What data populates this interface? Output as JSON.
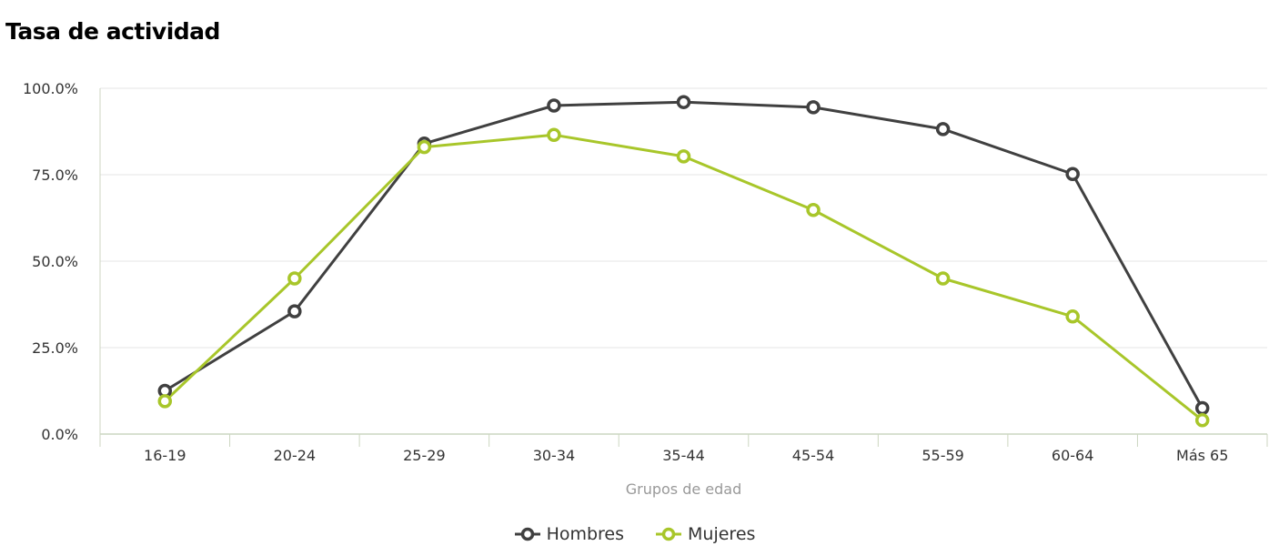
{
  "chart_data": {
    "type": "line",
    "title": "Tasa de actividad",
    "xlabel": "Grupos de edad",
    "ylabel": "",
    "categories": [
      "16-19",
      "20-24",
      "25-29",
      "30-34",
      "35-44",
      "45-54",
      "55-59",
      "60-64",
      "Más 65"
    ],
    "ylim": [
      0,
      100
    ],
    "yticks": [
      "0.0%",
      "25.0%",
      "50.0%",
      "75.0%",
      "100.0%"
    ],
    "grid": true,
    "legend_position": "bottom-center",
    "series": [
      {
        "name": "Hombres",
        "color": "#404040",
        "values": [
          12.5,
          35.5,
          84.0,
          95.0,
          96.0,
          94.5,
          88.2,
          75.2,
          7.5
        ]
      },
      {
        "name": "Mujeres",
        "color": "#a8c62a",
        "values": [
          9.5,
          45.0,
          83.0,
          86.5,
          80.3,
          64.8,
          45.0,
          34.0,
          4.0
        ]
      }
    ]
  }
}
